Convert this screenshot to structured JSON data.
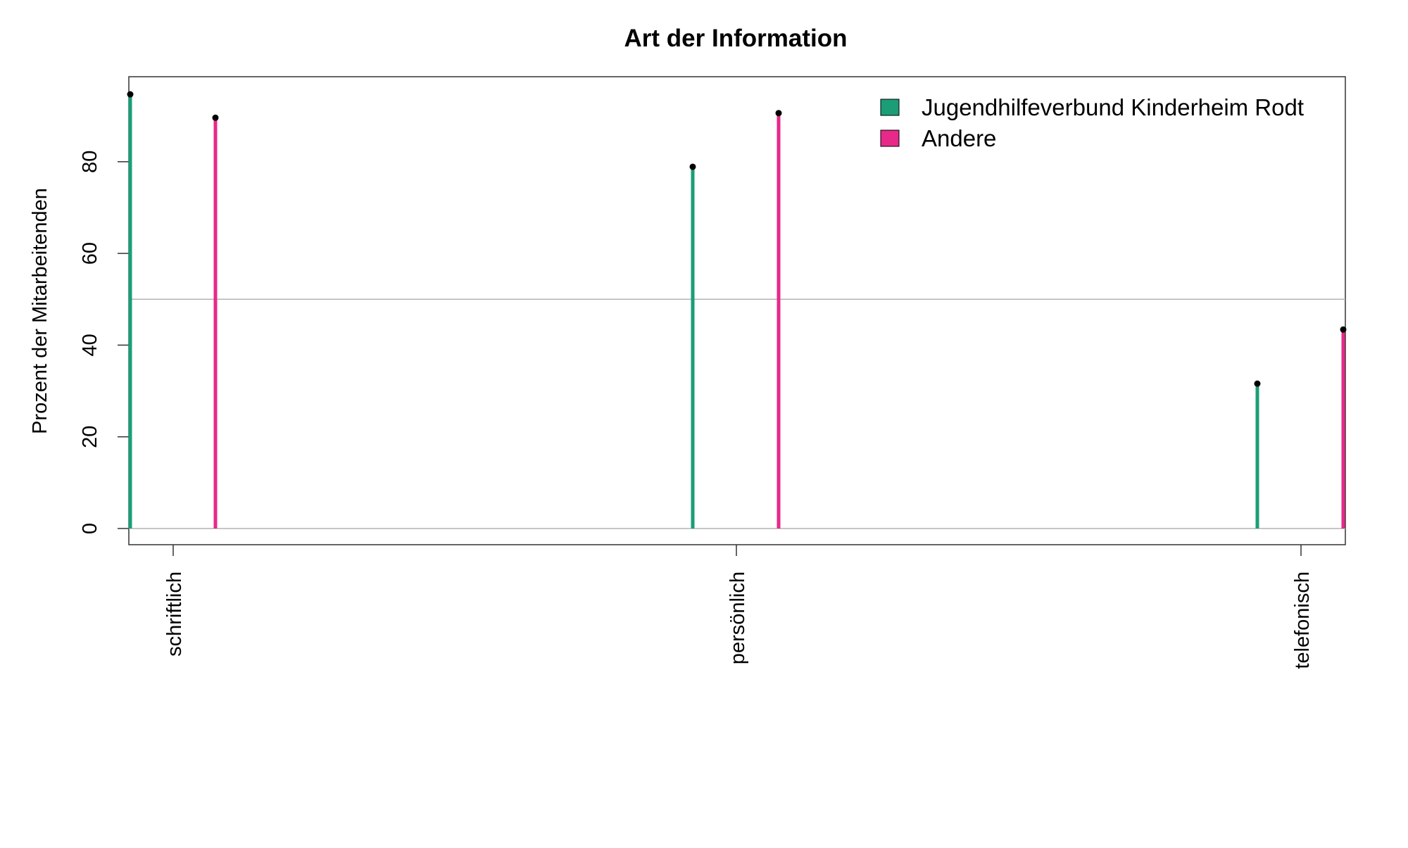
{
  "chart_data": {
    "type": "bar",
    "title": "Art der Information",
    "xlabel": "",
    "ylabel": "Prozent der Mitarbeitenden",
    "categories": [
      "schriftlich",
      "persönlich",
      "telefonisch"
    ],
    "series": [
      {
        "name": "Jugendhilfeverbund Kinderheim Rodt",
        "color": "#1b9e77",
        "values": [
          94.7,
          78.9,
          31.6
        ]
      },
      {
        "name": "Andere",
        "color": "#e7298a",
        "values": [
          89.6,
          90.6,
          43.4
        ]
      }
    ],
    "ylim": [
      0,
      100
    ],
    "yticks": [
      0,
      20,
      40,
      60,
      80
    ],
    "reference_line": 50,
    "legend_position": "top-right",
    "grid": false
  }
}
